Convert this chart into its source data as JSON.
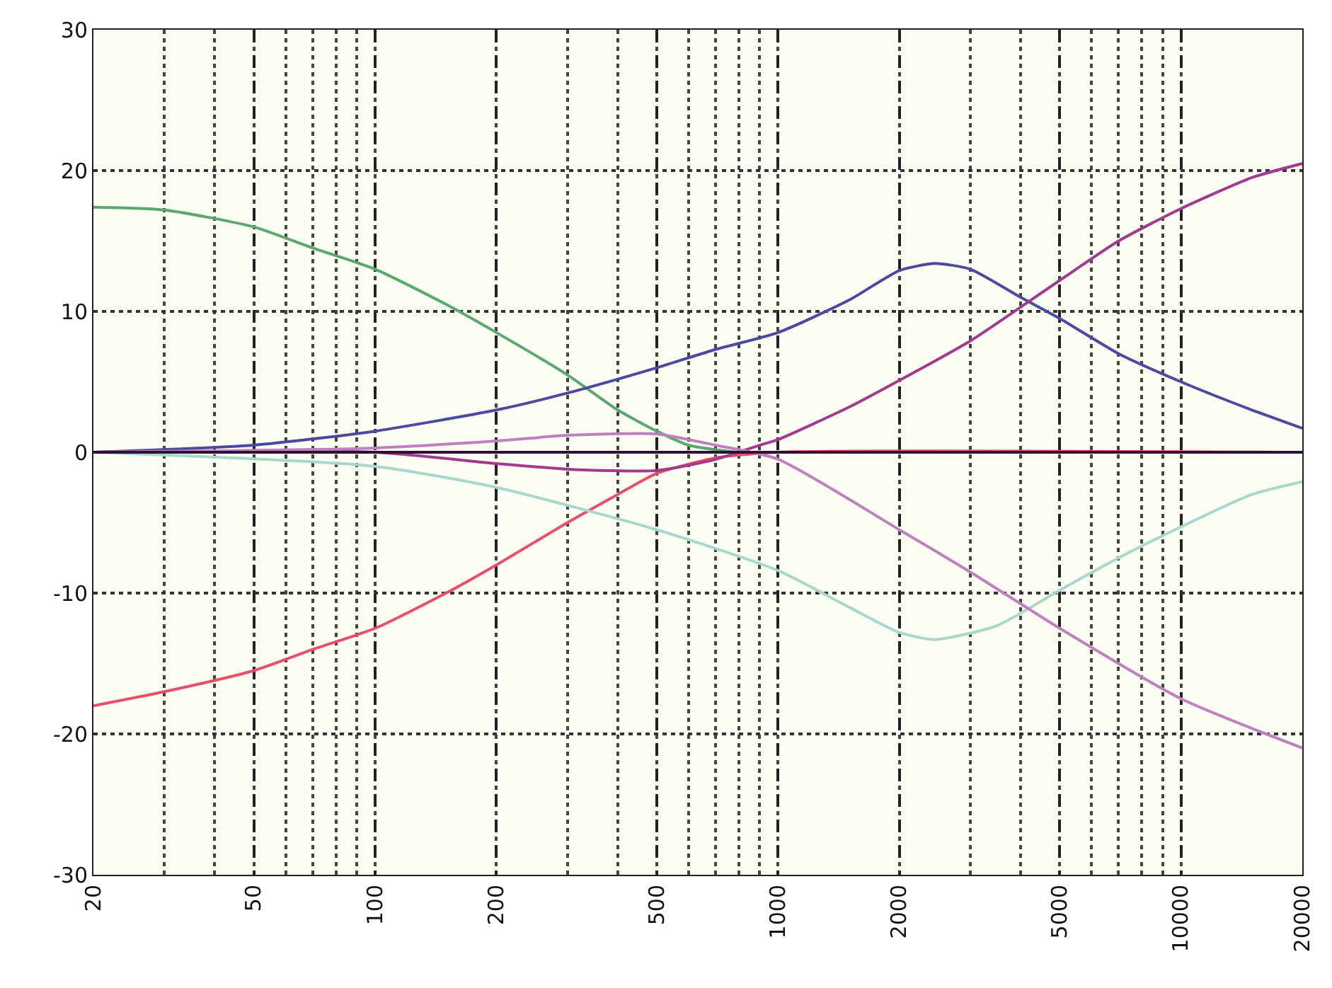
{
  "chart_data": {
    "type": "line",
    "log": "x",
    "grid": true,
    "marker": "none",
    "line_style": "solid",
    "xlim": [
      20,
      20000
    ],
    "xticks": [
      20,
      50,
      100,
      200,
      500,
      1000,
      2000,
      5000,
      10000,
      20000
    ],
    "ylim": [
      -30,
      30
    ],
    "yticks": [
      -30,
      -20,
      -10,
      0,
      10,
      20,
      30
    ],
    "series": [
      {
        "color": "#5aa870",
        "x": [
          20,
          30,
          50,
          70,
          100,
          150,
          200,
          300,
          400,
          500,
          600,
          800,
          1000,
          20000
        ],
        "values": [
          17.4,
          17.2,
          16,
          14.5,
          13,
          10.5,
          8.5,
          5.5,
          3,
          1.5,
          0.5,
          0,
          0,
          0
        ]
      },
      {
        "color": "#e8506a",
        "x": [
          20,
          30,
          50,
          70,
          100,
          150,
          200,
          300,
          400,
          500,
          700,
          1000,
          20000
        ],
        "values": [
          -18,
          -17,
          -15.5,
          -14,
          -12.5,
          -10,
          -8,
          -5,
          -3,
          -1.5,
          -0.4,
          0,
          0
        ]
      },
      {
        "color": "#4a4aa0",
        "x": [
          20,
          50,
          100,
          200,
          300,
          500,
          700,
          1000,
          1500,
          2000,
          2450,
          3000,
          4000,
          5000,
          7000,
          10000,
          15000,
          20000
        ],
        "values": [
          0,
          0.5,
          1.5,
          3,
          4.2,
          6,
          7.3,
          8.5,
          10.8,
          12.9,
          13.4,
          13,
          11,
          9.5,
          7,
          5,
          3,
          1.7
        ]
      },
      {
        "color": "#a8d8cc",
        "x": [
          20,
          100,
          200,
          500,
          1000,
          1500,
          2000,
          2450,
          3500,
          5000,
          7000,
          10000,
          15000,
          20000
        ],
        "values": [
          0,
          -1,
          -2.5,
          -5.5,
          -8.4,
          -11,
          -12.8,
          -13.3,
          -12.3,
          -9.8,
          -7.5,
          -5.3,
          -3,
          -2.1
        ]
      },
      {
        "color": "#a03c90",
        "x": [
          20,
          100,
          200,
          300,
          500,
          700,
          900,
          1000,
          1500,
          2000,
          3000,
          5000,
          7000,
          10000,
          15000,
          20000
        ],
        "values": [
          0,
          0,
          -0.8,
          -1.2,
          -1.3,
          -0.5,
          0.5,
          0.9,
          3.2,
          5.1,
          7.9,
          12.2,
          15,
          17.3,
          19.5,
          20.5
        ]
      },
      {
        "color": "#c080c0",
        "x": [
          20,
          100,
          200,
          300,
          500,
          700,
          1000,
          2000,
          3000,
          5000,
          10000,
          20000
        ],
        "values": [
          0,
          0.3,
          0.8,
          1.2,
          1.3,
          0.5,
          -0.5,
          -5.5,
          -8.5,
          -12.5,
          -17.5,
          -21
        ]
      },
      {
        "color": "#301030",
        "x": [
          20,
          20000
        ],
        "values": [
          0,
          0
        ]
      }
    ]
  }
}
